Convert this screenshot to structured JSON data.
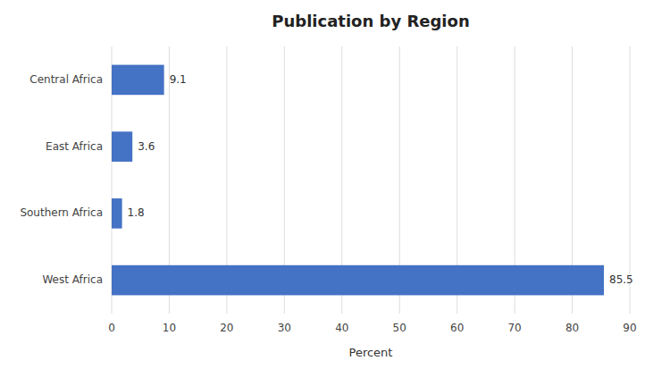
{
  "chart_data": {
    "type": "bar",
    "orientation": "horizontal",
    "title": "Publication by Region",
    "categories": [
      "West Africa",
      "Southern Africa",
      "East Africa",
      "Central Africa"
    ],
    "values": [
      85.5,
      1.8,
      3.6,
      9.1
    ],
    "color": "#4472C4",
    "xlabel": "Percent",
    "xlim": [
      0,
      90
    ],
    "xticks": [
      0,
      10,
      20,
      30,
      40,
      50,
      60,
      70,
      80,
      90
    ],
    "grid": true,
    "data_labels": true
  }
}
